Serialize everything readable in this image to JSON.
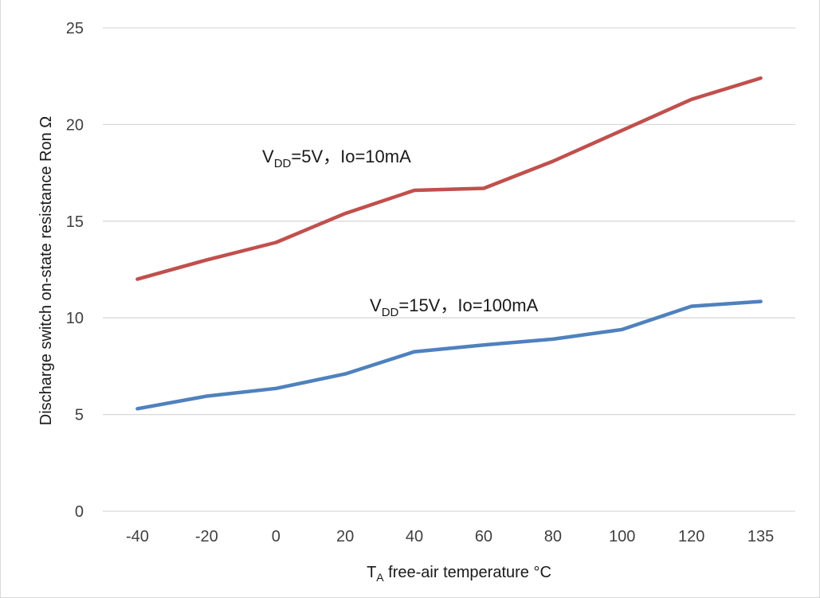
{
  "chart_data": {
    "type": "line",
    "categories": [
      "-40",
      "-20",
      "0",
      "20",
      "40",
      "60",
      "80",
      "100",
      "120",
      "135"
    ],
    "ylim": [
      0,
      25
    ],
    "yticks": [
      "0",
      "5",
      "10",
      "15",
      "20",
      "25"
    ],
    "grid": true,
    "xlabel": {
      "sym": "T",
      "sub": "A",
      "rest": " free-air temperature °C"
    },
    "ylabel": "Discharge switch on-state resistance Ron Ω",
    "series": [
      {
        "label": {
          "pre": "V",
          "sub": "DD",
          "rest": "=5V，Io=10mA"
        },
        "color": "#c0504d",
        "values": [
          12.0,
          13.0,
          13.9,
          15.4,
          16.6,
          16.7,
          18.1,
          19.7,
          21.3,
          22.4
        ]
      },
      {
        "label": {
          "pre": "V",
          "sub": "DD",
          "rest": "=15V，Io=100mA"
        },
        "color": "#4f81bd",
        "values": [
          5.3,
          5.95,
          6.35,
          7.1,
          8.25,
          8.6,
          8.9,
          9.4,
          10.6,
          10.85
        ]
      }
    ]
  }
}
